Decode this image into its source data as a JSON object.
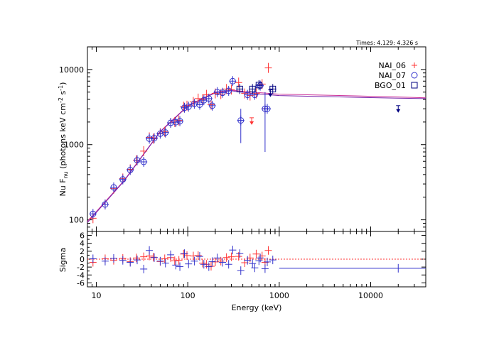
{
  "chart_data": [
    {
      "type": "scatter",
      "title": "",
      "annotation": "Times: 4.129: 4.326 s",
      "xlabel": "",
      "ylabel": "Nu F",
      "ylabel_sub": "nu",
      "ylabel_units_pre": " (photons keV cm",
      "ylabel_units_exp1": "-2",
      "ylabel_units_mid": " s",
      "ylabel_units_exp2": "-1",
      "ylabel_units_post": ")",
      "xscale": "log",
      "yscale": "log",
      "xlim": [
        8,
        40000
      ],
      "ylim": [
        70,
        20000
      ],
      "x_ticks": [
        10,
        100,
        1000,
        10000
      ],
      "x_tick_labels": [
        "10",
        "100",
        "1000",
        "10000"
      ],
      "y_ticks": [
        100,
        1000,
        10000
      ],
      "y_tick_labels": [
        "100",
        "1000",
        "10000"
      ],
      "legend_position": "top-right",
      "colors": {
        "NAI_06": "#ff3333",
        "NAI_07": "#3333cc",
        "BGO_01": "#000080",
        "model": "#cc3399"
      },
      "series": [
        {
          "name": "NAI_06",
          "marker": "plus",
          "points": [
            [
              9.2,
              105
            ],
            [
              12.5,
              160
            ],
            [
              15.5,
              260
            ],
            [
              19.5,
              355
            ],
            [
              23.5,
              470
            ],
            [
              27.5,
              620
            ],
            [
              33,
              820
            ],
            [
              38,
              1250
            ],
            [
              42,
              1200
            ],
            [
              50,
              1420
            ],
            [
              56,
              1480
            ],
            [
              65,
              1950
            ],
            [
              72,
              2000
            ],
            [
              80,
              2100
            ],
            [
              90,
              3200
            ],
            [
              98,
              3300
            ],
            [
              115,
              3700
            ],
            [
              130,
              4100
            ],
            [
              145,
              4000
            ],
            [
              160,
              4600
            ],
            [
              180,
              3400
            ],
            [
              200,
              4800
            ],
            [
              230,
              4700
            ],
            [
              265,
              5500
            ],
            [
              300,
              5400
            ],
            [
              360,
              6700
            ],
            [
              420,
              4800
            ],
            [
              480,
              4500
            ],
            [
              560,
              4800
            ],
            [
              650,
              6400
            ],
            [
              700,
              3000
            ],
            [
              760,
              10500
            ]
          ],
          "upper_limits": [
            [
              500,
              2000
            ]
          ]
        },
        {
          "name": "NAI_07",
          "marker": "circle",
          "points": [
            [
              9.2,
              120
            ],
            [
              12.5,
              160
            ],
            [
              15.5,
              270
            ],
            [
              19.5,
              345
            ],
            [
              23.5,
              460
            ],
            [
              28,
              620
            ],
            [
              33,
              590
            ],
            [
              38,
              1200
            ],
            [
              43,
              1220
            ],
            [
              50,
              1400
            ],
            [
              57,
              1450
            ],
            [
              65,
              1950
            ],
            [
              74,
              1990
            ],
            [
              82,
              2050
            ],
            [
              92,
              3100
            ],
            [
              102,
              3200
            ],
            [
              118,
              3500
            ],
            [
              135,
              3400
            ],
            [
              150,
              3900
            ],
            [
              170,
              4100
            ],
            [
              185,
              3300
            ],
            [
              210,
              5000
            ],
            [
              240,
              4900
            ],
            [
              280,
              5200
            ],
            [
              310,
              7000
            ],
            [
              380,
              2100
            ],
            [
              450,
              4600
            ],
            [
              540,
              4600
            ],
            [
              620,
              6100
            ],
            [
              700,
              3000
            ],
            [
              740,
              3000
            ]
          ],
          "upper_limits": []
        },
        {
          "name": "BGO_01",
          "marker": "square",
          "points": [
            [
              370,
              5500
            ],
            [
              510,
              5500
            ],
            [
              600,
              6200
            ],
            [
              850,
              5500
            ]
          ],
          "upper_limits": [
            [
              800,
              4700
            ],
            [
              20000,
              2900
            ]
          ]
        }
      ],
      "model_curves": [
        {
          "name": "model_1",
          "points": [
            [
              8,
              95
            ],
            [
              20,
              330
            ],
            [
              50,
              1500
            ],
            [
              100,
              3300
            ],
            [
              200,
              5000
            ],
            [
              300,
              5300
            ],
            [
              500,
              5000
            ],
            [
              1000,
              4700
            ],
            [
              5000,
              4500
            ],
            [
              20000,
              4300
            ],
            [
              40000,
              4200
            ]
          ]
        },
        {
          "name": "model_2",
          "points": [
            [
              8,
              92
            ],
            [
              20,
              325
            ],
            [
              50,
              1480
            ],
            [
              100,
              3250
            ],
            [
              200,
              4900
            ],
            [
              300,
              5200
            ],
            [
              500,
              4800
            ],
            [
              1000,
              4500
            ],
            [
              5000,
              4300
            ],
            [
              20000,
              4150
            ],
            [
              40000,
              4100
            ]
          ]
        }
      ]
    },
    {
      "type": "scatter",
      "title": "",
      "xlabel": "Energy (keV)",
      "ylabel": "Sigma",
      "xscale": "log",
      "yscale": "linear",
      "xlim": [
        8,
        40000
      ],
      "ylim": [
        -7,
        7
      ],
      "x_ticks": [
        10,
        100,
        1000,
        10000
      ],
      "x_tick_labels": [
        "10",
        "100",
        "1000",
        "10000"
      ],
      "y_ticks": [
        -6,
        -4,
        -2,
        0,
        2,
        4,
        6
      ],
      "y_tick_labels": [
        "-6",
        "-4",
        "-2",
        "0",
        "2",
        "4",
        "6"
      ],
      "zero_line": 0,
      "series": [
        {
          "name": "NAI_06",
          "points": [
            [
              9.2,
              -0.8
            ],
            [
              12.5,
              0.1
            ],
            [
              15.5,
              -0.3
            ],
            [
              19.5,
              0.2
            ],
            [
              23.5,
              -0.6
            ],
            [
              27.5,
              0.3
            ],
            [
              33,
              0.6
            ],
            [
              38,
              0.8
            ],
            [
              42,
              0.5
            ],
            [
              50,
              -0.6
            ],
            [
              56,
              0.1
            ],
            [
              65,
              0.4
            ],
            [
              72,
              -0.4
            ],
            [
              80,
              -0.3
            ],
            [
              90,
              1.3
            ],
            [
              98,
              0.9
            ],
            [
              115,
              0.8
            ],
            [
              130,
              0.9
            ],
            [
              145,
              -1.0
            ],
            [
              160,
              -1.3
            ],
            [
              180,
              -1.8
            ],
            [
              200,
              -0.7
            ],
            [
              230,
              -0.5
            ],
            [
              265,
              0.4
            ],
            [
              300,
              0.6
            ],
            [
              360,
              0.7
            ],
            [
              420,
              -0.9
            ],
            [
              480,
              0.3
            ],
            [
              560,
              1.3
            ],
            [
              650,
              0.8
            ],
            [
              700,
              -0.8
            ],
            [
              760,
              2.2
            ]
          ]
        },
        {
          "name": "NAI_07",
          "points": [
            [
              9.2,
              0.1
            ],
            [
              12.5,
              -0.5
            ],
            [
              15.5,
              0.2
            ],
            [
              19.5,
              -0.3
            ],
            [
              23.5,
              -0.8
            ],
            [
              28,
              -0.2
            ],
            [
              33,
              -2.5
            ],
            [
              38,
              2.2
            ],
            [
              43,
              0.4
            ],
            [
              50,
              -0.5
            ],
            [
              57,
              -1.0
            ],
            [
              65,
              1.1
            ],
            [
              74,
              -1.5
            ],
            [
              82,
              -1.9
            ],
            [
              92,
              1.4
            ],
            [
              102,
              -1.2
            ],
            [
              118,
              -0.5
            ],
            [
              135,
              0.7
            ],
            [
              150,
              -1.3
            ],
            [
              170,
              -1.9
            ],
            [
              185,
              -0.6
            ],
            [
              210,
              0.3
            ],
            [
              240,
              -0.8
            ],
            [
              280,
              -1.3
            ],
            [
              310,
              2.3
            ],
            [
              380,
              -2.9
            ],
            [
              450,
              -0.3
            ],
            [
              540,
              -2.2
            ],
            [
              620,
              0.3
            ],
            [
              700,
              -2.4
            ],
            [
              740,
              -0.7
            ]
          ]
        },
        {
          "name": "BGO_01",
          "points": [
            [
              370,
              1.4
            ],
            [
              510,
              -1.1
            ],
            [
              600,
              -0.4
            ],
            [
              850,
              -0.2
            ],
            [
              20000,
              -2.3
            ]
          ]
        }
      ]
    }
  ]
}
